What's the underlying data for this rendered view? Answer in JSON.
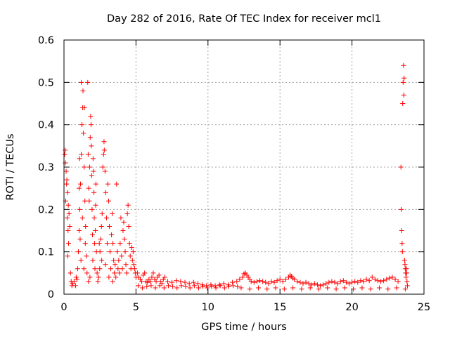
{
  "chart_data": {
    "type": "scatter",
    "title": "Day 282 of 2016, Rate Of TEC Index for receiver mcl1",
    "xlabel": "GPS time / hours",
    "ylabel": "ROTI / TECUs",
    "xlim": [
      0,
      25
    ],
    "ylim": [
      0,
      0.6
    ],
    "xticks": [
      0,
      5,
      10,
      15,
      20,
      25
    ],
    "xtick_labels": [
      "0",
      "5",
      "10",
      "15",
      "20",
      "25"
    ],
    "yticks": [
      0,
      0.1,
      0.2,
      0.3,
      0.4,
      0.5,
      0.6
    ],
    "ytick_labels": [
      "0",
      "0.1",
      "0.2",
      "0.3",
      "0.4",
      "0.5",
      "0.6"
    ],
    "grid": true,
    "marker": "plus",
    "color": "#ff0000",
    "series": [
      {
        "name": "ROTI",
        "points": [
          [
            0.05,
            0.33
          ],
          [
            0.1,
            0.31
          ],
          [
            0.15,
            0.29
          ],
          [
            0.2,
            0.27
          ],
          [
            0.25,
            0.24
          ],
          [
            0.3,
            0.21
          ],
          [
            0.35,
            0.19
          ],
          [
            0.4,
            0.16
          ],
          [
            0.12,
            0.22
          ],
          [
            0.22,
            0.18
          ],
          [
            0.28,
            0.15
          ],
          [
            0.32,
            0.12
          ],
          [
            0.18,
            0.26
          ],
          [
            0.08,
            0.34
          ],
          [
            0.26,
            0.09
          ],
          [
            0.45,
            0.05
          ],
          [
            0.5,
            0.03
          ],
          [
            0.55,
            0.02
          ],
          [
            0.6,
            0.025
          ],
          [
            0.7,
            0.03
          ],
          [
            0.8,
            0.02
          ],
          [
            0.85,
            0.04
          ],
          [
            0.9,
            0.035
          ],
          [
            0.95,
            0.06
          ],
          [
            1.0,
            0.1
          ],
          [
            1.05,
            0.15
          ],
          [
            1.1,
            0.2
          ],
          [
            1.15,
            0.26
          ],
          [
            1.2,
            0.33
          ],
          [
            1.25,
            0.4
          ],
          [
            1.3,
            0.44
          ],
          [
            1.32,
            0.48
          ],
          [
            1.35,
            0.38
          ],
          [
            1.4,
            0.3
          ],
          [
            1.45,
            0.22
          ],
          [
            1.5,
            0.16
          ],
          [
            1.55,
            0.09
          ],
          [
            1.05,
            0.25
          ],
          [
            1.12,
            0.13
          ],
          [
            1.2,
            0.5
          ],
          [
            1.42,
            0.44
          ],
          [
            1.28,
            0.18
          ],
          [
            1.48,
            0.12
          ],
          [
            1.38,
            0.06
          ],
          [
            1.18,
            0.08
          ],
          [
            1.08,
            0.32
          ],
          [
            1.6,
            0.05
          ],
          [
            1.7,
            0.03
          ],
          [
            1.8,
            0.04
          ],
          [
            1.65,
            0.5
          ],
          [
            1.68,
            0.33
          ],
          [
            1.72,
            0.25
          ],
          [
            1.75,
            0.22
          ],
          [
            1.78,
            0.3
          ],
          [
            1.82,
            0.37
          ],
          [
            1.85,
            0.42
          ],
          [
            1.88,
            0.4
          ],
          [
            1.9,
            0.35
          ],
          [
            1.92,
            0.28
          ],
          [
            1.95,
            0.2
          ],
          [
            1.98,
            0.14
          ],
          [
            2.0,
            0.08
          ],
          [
            2.02,
            0.32
          ],
          [
            2.05,
            0.29
          ],
          [
            2.08,
            0.24
          ],
          [
            2.1,
            0.18
          ],
          [
            2.12,
            0.12
          ],
          [
            2.15,
            0.06
          ],
          [
            2.18,
            0.15
          ],
          [
            2.2,
            0.21
          ],
          [
            2.22,
            0.26
          ],
          [
            2.25,
            0.1
          ],
          [
            2.3,
            0.05
          ],
          [
            2.35,
            0.03
          ],
          [
            2.4,
            0.04
          ],
          [
            2.45,
            0.12
          ],
          [
            2.5,
            0.1
          ],
          [
            2.55,
            0.13
          ],
          [
            2.6,
            0.16
          ],
          [
            2.65,
            0.19
          ],
          [
            2.7,
            0.3
          ],
          [
            2.75,
            0.33
          ],
          [
            2.78,
            0.36
          ],
          [
            2.8,
            0.34
          ],
          [
            2.85,
            0.29
          ],
          [
            2.9,
            0.24
          ],
          [
            2.95,
            0.18
          ],
          [
            3.0,
            0.12
          ],
          [
            3.05,
            0.26
          ],
          [
            3.1,
            0.22
          ],
          [
            3.15,
            0.16
          ],
          [
            3.2,
            0.1
          ],
          [
            3.25,
            0.06
          ],
          [
            3.3,
            0.14
          ],
          [
            3.35,
            0.19
          ],
          [
            3.4,
            0.12
          ],
          [
            3.45,
            0.08
          ],
          [
            3.5,
            0.05
          ],
          [
            2.48,
            0.06
          ],
          [
            2.62,
            0.08
          ],
          [
            2.88,
            0.07
          ],
          [
            3.12,
            0.04
          ],
          [
            3.38,
            0.03
          ],
          [
            3.55,
            0.07
          ],
          [
            3.6,
            0.04
          ],
          [
            3.65,
            0.26
          ],
          [
            3.7,
            0.1
          ],
          [
            3.75,
            0.06
          ],
          [
            3.8,
            0.08
          ],
          [
            3.85,
            0.05
          ],
          [
            3.9,
            0.12
          ],
          [
            3.95,
            0.18
          ],
          [
            4.0,
            0.09
          ],
          [
            4.05,
            0.06
          ],
          [
            4.1,
            0.15
          ],
          [
            4.15,
            0.17
          ],
          [
            4.2,
            0.13
          ],
          [
            4.25,
            0.1
          ],
          [
            4.3,
            0.07
          ],
          [
            4.35,
            0.05
          ],
          [
            4.4,
            0.19
          ],
          [
            4.45,
            0.21
          ],
          [
            4.5,
            0.16
          ],
          [
            4.55,
            0.12
          ],
          [
            4.6,
            0.09
          ],
          [
            4.65,
            0.06
          ],
          [
            4.7,
            0.11
          ],
          [
            4.75,
            0.08
          ],
          [
            4.8,
            0.1
          ],
          [
            4.85,
            0.07
          ],
          [
            4.9,
            0.06
          ],
          [
            4.95,
            0.05
          ],
          [
            5.0,
            0.04
          ],
          [
            5.1,
            0.05
          ],
          [
            5.2,
            0.04
          ],
          [
            5.3,
            0.035
          ],
          [
            5.4,
            0.03
          ],
          [
            5.5,
            0.045
          ],
          [
            5.6,
            0.05
          ],
          [
            5.7,
            0.03
          ],
          [
            5.8,
            0.028
          ],
          [
            5.9,
            0.035
          ],
          [
            6.0,
            0.03
          ],
          [
            6.1,
            0.04
          ],
          [
            6.2,
            0.05
          ],
          [
            6.3,
            0.035
          ],
          [
            6.4,
            0.03
          ],
          [
            6.5,
            0.04
          ],
          [
            6.6,
            0.045
          ],
          [
            6.7,
            0.03
          ],
          [
            6.8,
            0.025
          ],
          [
            6.9,
            0.035
          ],
          [
            7.0,
            0.04
          ],
          [
            5.15,
            0.02
          ],
          [
            5.45,
            0.015
          ],
          [
            5.75,
            0.018
          ],
          [
            6.05,
            0.02
          ],
          [
            6.35,
            0.015
          ],
          [
            6.65,
            0.02
          ],
          [
            6.95,
            0.015
          ],
          [
            7.25,
            0.02
          ],
          [
            7.55,
            0.018
          ],
          [
            7.85,
            0.015
          ],
          [
            8.15,
            0.02
          ],
          [
            8.45,
            0.018
          ],
          [
            8.75,
            0.015
          ],
          [
            9.05,
            0.02
          ],
          [
            9.35,
            0.015
          ],
          [
            9.65,
            0.018
          ],
          [
            9.95,
            0.015
          ],
          [
            10.25,
            0.018
          ],
          [
            10.55,
            0.015
          ],
          [
            10.85,
            0.02
          ],
          [
            11.15,
            0.015
          ],
          [
            11.45,
            0.018
          ],
          [
            11.75,
            0.02
          ],
          [
            12.05,
            0.018
          ],
          [
            7.2,
            0.03
          ],
          [
            7.5,
            0.028
          ],
          [
            7.8,
            0.032
          ],
          [
            8.1,
            0.03
          ],
          [
            8.4,
            0.028
          ],
          [
            8.7,
            0.025
          ],
          [
            9.0,
            0.028
          ],
          [
            9.3,
            0.025
          ],
          [
            9.6,
            0.022
          ],
          [
            9.9,
            0.02
          ],
          [
            10.2,
            0.022
          ],
          [
            10.5,
            0.02
          ],
          [
            10.8,
            0.022
          ],
          [
            11.1,
            0.025
          ],
          [
            11.4,
            0.022
          ],
          [
            11.7,
            0.028
          ],
          [
            12.0,
            0.03
          ],
          [
            12.2,
            0.035
          ],
          [
            12.4,
            0.04
          ],
          [
            12.5,
            0.048
          ],
          [
            12.6,
            0.05
          ],
          [
            12.7,
            0.045
          ],
          [
            12.8,
            0.04
          ],
          [
            12.9,
            0.035
          ],
          [
            13.0,
            0.03
          ],
          [
            13.2,
            0.028
          ],
          [
            13.4,
            0.03
          ],
          [
            13.6,
            0.032
          ],
          [
            13.8,
            0.03
          ],
          [
            14.0,
            0.028
          ],
          [
            14.2,
            0.025
          ],
          [
            14.4,
            0.03
          ],
          [
            14.6,
            0.028
          ],
          [
            14.8,
            0.032
          ],
          [
            15.0,
            0.035
          ],
          [
            15.2,
            0.03
          ],
          [
            15.4,
            0.035
          ],
          [
            15.6,
            0.04
          ],
          [
            15.7,
            0.045
          ],
          [
            15.8,
            0.042
          ],
          [
            15.9,
            0.038
          ],
          [
            16.0,
            0.035
          ],
          [
            16.2,
            0.03
          ],
          [
            16.4,
            0.028
          ],
          [
            16.6,
            0.025
          ],
          [
            16.8,
            0.028
          ],
          [
            17.0,
            0.025
          ],
          [
            17.2,
            0.022
          ],
          [
            17.4,
            0.025
          ],
          [
            17.6,
            0.022
          ],
          [
            17.8,
            0.02
          ],
          [
            18.0,
            0.022
          ],
          [
            18.2,
            0.025
          ],
          [
            18.4,
            0.028
          ],
          [
            18.6,
            0.03
          ],
          [
            18.8,
            0.028
          ],
          [
            19.0,
            0.025
          ],
          [
            19.2,
            0.03
          ],
          [
            19.4,
            0.032
          ],
          [
            19.6,
            0.028
          ],
          [
            19.8,
            0.025
          ],
          [
            20.0,
            0.028
          ],
          [
            20.2,
            0.03
          ],
          [
            20.4,
            0.028
          ],
          [
            20.6,
            0.032
          ],
          [
            20.8,
            0.03
          ],
          [
            21.0,
            0.035
          ],
          [
            21.2,
            0.032
          ],
          [
            21.4,
            0.04
          ],
          [
            21.6,
            0.035
          ],
          [
            21.8,
            0.032
          ],
          [
            22.0,
            0.03
          ],
          [
            22.2,
            0.032
          ],
          [
            22.4,
            0.035
          ],
          [
            22.6,
            0.038
          ],
          [
            22.8,
            0.04
          ],
          [
            23.0,
            0.035
          ],
          [
            23.2,
            0.03
          ],
          [
            12.3,
            0.015
          ],
          [
            12.9,
            0.012
          ],
          [
            13.5,
            0.015
          ],
          [
            14.1,
            0.012
          ],
          [
            14.7,
            0.015
          ],
          [
            15.3,
            0.012
          ],
          [
            15.9,
            0.015
          ],
          [
            16.5,
            0.012
          ],
          [
            17.1,
            0.015
          ],
          [
            17.7,
            0.012
          ],
          [
            18.3,
            0.015
          ],
          [
            18.9,
            0.012
          ],
          [
            19.5,
            0.015
          ],
          [
            20.1,
            0.012
          ],
          [
            20.7,
            0.015
          ],
          [
            21.3,
            0.012
          ],
          [
            21.9,
            0.015
          ],
          [
            22.5,
            0.012
          ],
          [
            23.1,
            0.015
          ],
          [
            23.7,
            0.012
          ],
          [
            23.4,
            0.3
          ],
          [
            23.42,
            0.2
          ],
          [
            23.45,
            0.15
          ],
          [
            23.48,
            0.12
          ],
          [
            23.5,
            0.1
          ],
          [
            23.52,
            0.45
          ],
          [
            23.55,
            0.5
          ],
          [
            23.58,
            0.54
          ],
          [
            23.6,
            0.47
          ],
          [
            23.62,
            0.51
          ],
          [
            23.65,
            0.08
          ],
          [
            23.68,
            0.07
          ],
          [
            23.7,
            0.06
          ],
          [
            23.72,
            0.05
          ],
          [
            23.75,
            0.04
          ],
          [
            23.78,
            0.06
          ],
          [
            23.8,
            0.05
          ],
          [
            23.82,
            0.03
          ],
          [
            23.85,
            0.02
          ]
        ]
      }
    ]
  }
}
